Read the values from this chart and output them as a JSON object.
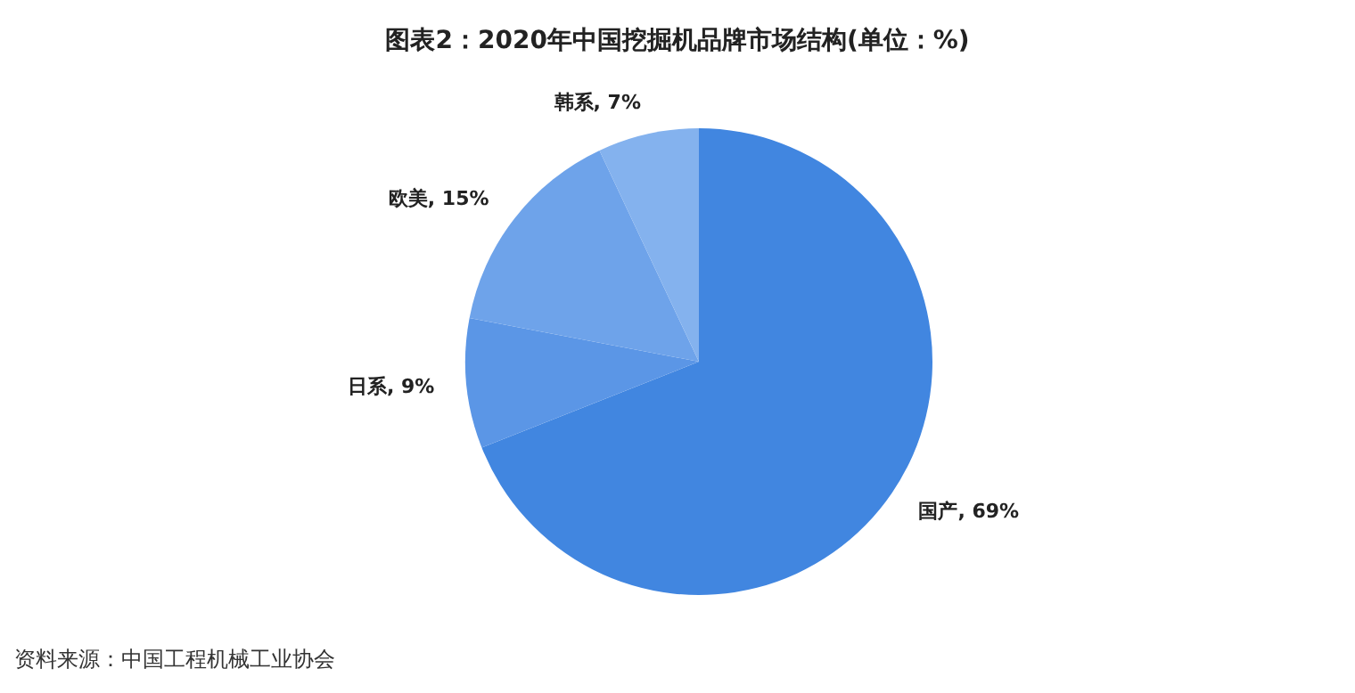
{
  "chart_data": {
    "type": "pie",
    "title": "图表2：2020年中国挖掘机品牌市场结构(单位：%)",
    "categories": [
      "国产",
      "日系",
      "欧美",
      "韩系"
    ],
    "values": [
      69,
      9,
      15,
      7
    ],
    "value_labels": [
      "69%",
      "9%",
      "15%",
      "7%"
    ],
    "colors": [
      "#4186e0",
      "#5b96e6",
      "#6ea3ea",
      "#84b2ee"
    ],
    "legend": false,
    "annotations": [
      "资料来源：中国工程机械工业协会"
    ]
  }
}
